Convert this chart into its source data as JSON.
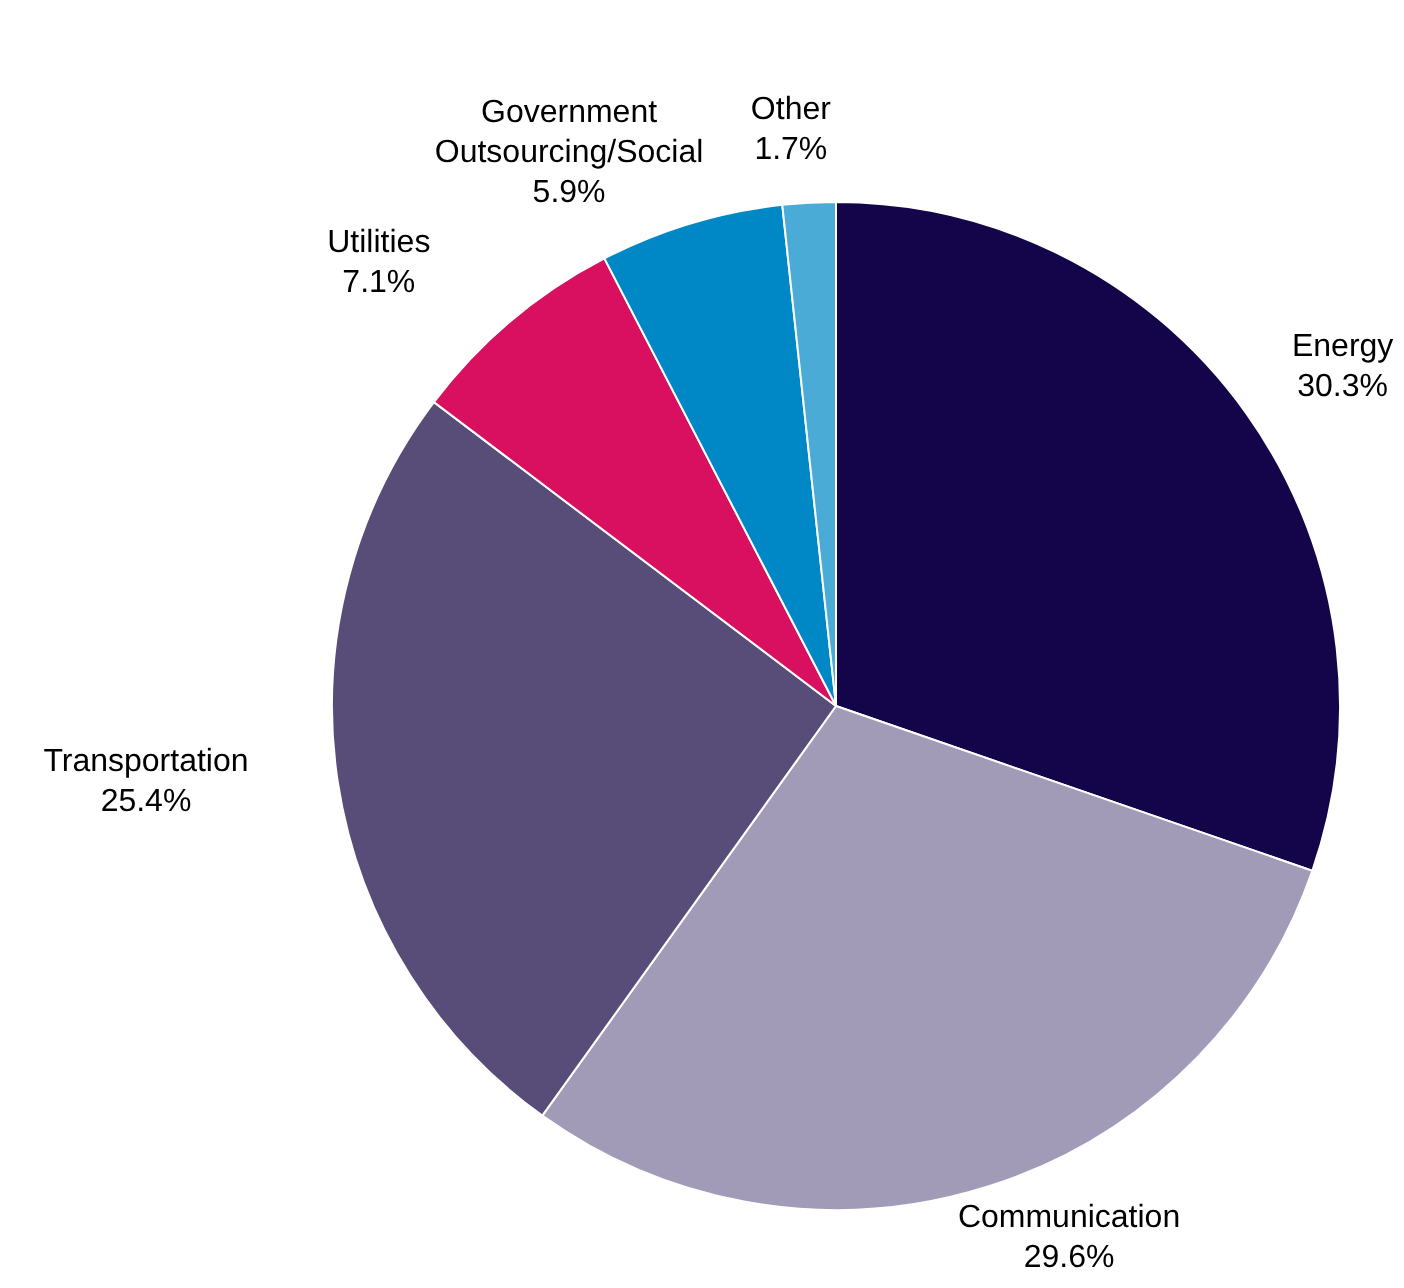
{
  "chart_data": {
    "type": "pie",
    "categories": [
      "Energy",
      "Communication",
      "Transportation",
      "Utilities",
      "Government Outsourcing/Social",
      "Other"
    ],
    "values": [
      30.3,
      29.6,
      25.4,
      7.1,
      5.9,
      1.7
    ],
    "value_labels": [
      "30.3%",
      "29.6%",
      "25.4%",
      "7.1%",
      "5.9%",
      "1.7%"
    ],
    "colors": [
      "#14044a",
      "#a29bb8",
      "#574d78",
      "#d9105f",
      "#0088c6",
      "#4aabd6"
    ],
    "legend": false
  }
}
